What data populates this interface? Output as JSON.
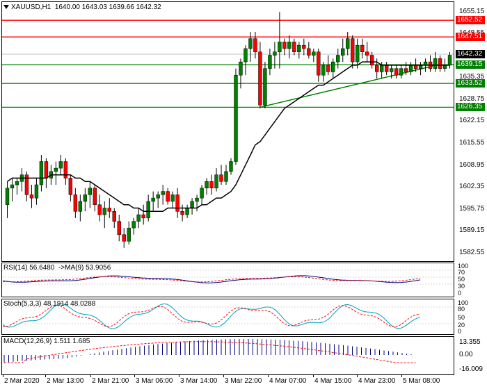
{
  "symbol_header": {
    "symbol": "XAUUSD,H1",
    "ohlc": "1640.00 1643.03 1639.66 1642.32"
  },
  "price_axis": [
    "1655.15",
    "1648.55",
    "1641.95",
    "1635.35",
    "1628.75",
    "1622.15",
    "1615.55",
    "1608.95",
    "1602.35",
    "1595.75",
    "1589.15",
    "1582.55"
  ],
  "level_tags": [
    {
      "value": "1652.52",
      "color": "red"
    },
    {
      "value": "1647.51",
      "color": "red"
    },
    {
      "value": "1642.32",
      "color": "black"
    },
    {
      "value": "1639.15",
      "color": "green"
    },
    {
      "value": "1633.52",
      "color": "green"
    },
    {
      "value": "1626.35",
      "color": "green"
    }
  ],
  "rsi_panel": {
    "title": "RSI(14) 56.6480",
    "ma": "->MA(9) 53.9056",
    "levels": [
      "100",
      "70",
      "50",
      "30",
      "0"
    ]
  },
  "stoch_panel": {
    "title": "Stoch(5,3,3) 48.1914 48.0288",
    "levels": [
      "100",
      "80",
      "50",
      "20",
      "0"
    ]
  },
  "macd_panel": {
    "title": "MACD(12,26,9) 1.511 1.685",
    "levels": [
      "13.355",
      "0.00",
      "-16.009"
    ]
  },
  "time_axis": [
    "2 Mar 2020",
    "2 Mar 13:00",
    "2 Mar 21:00",
    "3 Mar 06:00",
    "3 Mar 14:00",
    "3 Mar 22:00",
    "4 Mar 07:00",
    "4 Mar 15:00",
    "4 Mar 23:00",
    "5 Mar 08:00"
  ],
  "chart_data": {
    "type": "candlestick",
    "candles": [
      [
        1597,
        1604,
        1593,
        1602
      ],
      [
        1602,
        1605,
        1598,
        1603
      ],
      [
        1603,
        1605,
        1600,
        1604
      ],
      [
        1604,
        1608,
        1601,
        1606
      ],
      [
        1606,
        1607,
        1598,
        1600
      ],
      [
        1600,
        1603,
        1596,
        1599
      ],
      [
        1599,
        1605,
        1597,
        1603
      ],
      [
        1603,
        1612,
        1601,
        1610
      ],
      [
        1610,
        1611,
        1602,
        1605
      ],
      [
        1605,
        1609,
        1603,
        1607
      ],
      [
        1607,
        1610,
        1603,
        1608
      ],
      [
        1608,
        1612,
        1606,
        1610
      ],
      [
        1610,
        1611,
        1603,
        1605
      ],
      [
        1605,
        1606,
        1598,
        1600
      ],
      [
        1600,
        1602,
        1593,
        1595
      ],
      [
        1595,
        1600,
        1592,
        1598
      ],
      [
        1598,
        1602,
        1595,
        1600
      ],
      [
        1600,
        1604,
        1596,
        1602
      ],
      [
        1602,
        1603,
        1595,
        1597
      ],
      [
        1597,
        1600,
        1592,
        1594
      ],
      [
        1594,
        1598,
        1590,
        1596
      ],
      [
        1596,
        1599,
        1593,
        1595
      ],
      [
        1595,
        1596,
        1590,
        1592
      ],
      [
        1592,
        1594,
        1586,
        1588
      ],
      [
        1588,
        1590,
        1584,
        1586
      ],
      [
        1586,
        1592,
        1585,
        1590
      ],
      [
        1590,
        1593,
        1588,
        1592
      ],
      [
        1592,
        1596,
        1590,
        1594
      ],
      [
        1594,
        1597,
        1591,
        1593
      ],
      [
        1593,
        1600,
        1592,
        1598
      ],
      [
        1598,
        1601,
        1595,
        1599
      ],
      [
        1599,
        1601,
        1596,
        1600
      ],
      [
        1600,
        1603,
        1597,
        1601
      ],
      [
        1601,
        1602,
        1597,
        1598
      ],
      [
        1598,
        1601,
        1596,
        1600
      ],
      [
        1600,
        1602,
        1593,
        1595
      ],
      [
        1595,
        1597,
        1592,
        1594
      ],
      [
        1594,
        1597,
        1593,
        1596
      ],
      [
        1596,
        1599,
        1594,
        1598
      ],
      [
        1598,
        1600,
        1595,
        1599
      ],
      [
        1599,
        1603,
        1597,
        1602
      ],
      [
        1602,
        1605,
        1600,
        1604
      ],
      [
        1604,
        1606,
        1600,
        1602
      ],
      [
        1602,
        1608,
        1601,
        1606
      ],
      [
        1606,
        1609,
        1603,
        1604
      ],
      [
        1604,
        1609,
        1603,
        1607
      ],
      [
        1607,
        1611,
        1606,
        1610
      ],
      [
        1610,
        1638,
        1609,
        1636
      ],
      [
        1636,
        1641,
        1632,
        1640
      ],
      [
        1640,
        1645,
        1636,
        1644
      ],
      [
        1644,
        1649,
        1640,
        1647
      ],
      [
        1647,
        1649,
        1641,
        1643
      ],
      [
        1643,
        1646,
        1626,
        1627
      ],
      [
        1627,
        1640,
        1626,
        1638
      ],
      [
        1638,
        1644,
        1636,
        1642
      ],
      [
        1642,
        1646,
        1638,
        1643
      ],
      [
        1643,
        1655,
        1638,
        1646
      ],
      [
        1646,
        1647,
        1642,
        1644
      ],
      [
        1644,
        1648,
        1641,
        1646
      ],
      [
        1646,
        1647,
        1642,
        1643
      ],
      [
        1643,
        1646,
        1641,
        1645
      ],
      [
        1645,
        1647,
        1642,
        1644
      ],
      [
        1644,
        1646,
        1641,
        1642
      ],
      [
        1642,
        1644,
        1640,
        1643
      ],
      [
        1643,
        1644,
        1634,
        1636
      ],
      [
        1636,
        1640,
        1634,
        1639
      ],
      [
        1639,
        1642,
        1636,
        1637
      ],
      [
        1637,
        1641,
        1635,
        1640
      ],
      [
        1640,
        1644,
        1638,
        1642
      ],
      [
        1642,
        1647,
        1640,
        1644
      ],
      [
        1644,
        1649,
        1642,
        1647
      ],
      [
        1647,
        1648,
        1638,
        1640
      ],
      [
        1640,
        1647,
        1638,
        1645
      ],
      [
        1645,
        1647,
        1641,
        1643
      ],
      [
        1643,
        1646,
        1640,
        1642
      ],
      [
        1642,
        1643,
        1638,
        1639
      ],
      [
        1639,
        1641,
        1635,
        1637
      ],
      [
        1637,
        1640,
        1635,
        1639
      ],
      [
        1639,
        1640,
        1636,
        1637
      ],
      [
        1637,
        1639,
        1635,
        1638
      ],
      [
        1638,
        1639,
        1635,
        1636
      ],
      [
        1636,
        1639,
        1635,
        1638
      ],
      [
        1638,
        1640,
        1636,
        1637
      ],
      [
        1637,
        1640,
        1636,
        1639
      ],
      [
        1639,
        1641,
        1637,
        1638
      ],
      [
        1638,
        1640,
        1636,
        1639
      ],
      [
        1639,
        1641,
        1637,
        1640
      ],
      [
        1640,
        1642,
        1637,
        1638
      ],
      [
        1638,
        1643,
        1637,
        1641
      ],
      [
        1641,
        1642,
        1637,
        1638
      ],
      [
        1638,
        1641,
        1637,
        1639
      ],
      [
        1639,
        1643,
        1638,
        1642
      ]
    ],
    "ma_values": [
      1604,
      1605,
      1605,
      1605,
      1605,
      1605,
      1605,
      1605,
      1605,
      1606,
      1606,
      1606,
      1606,
      1606,
      1605,
      1605,
      1604,
      1604,
      1603,
      1602,
      1601,
      1600,
      1599,
      1598,
      1597,
      1597,
      1596,
      1596,
      1595,
      1595,
      1595,
      1595,
      1595,
      1596,
      1596,
      1596,
      1596,
      1596,
      1596,
      1596,
      1597,
      1597,
      1598,
      1599,
      1599,
      1600,
      1601,
      1603,
      1606,
      1609,
      1612,
      1615,
      1616,
      1618,
      1620,
      1622,
      1624,
      1626,
      1627,
      1628,
      1629,
      1630,
      1631,
      1632,
      1633,
      1633,
      1634,
      1635,
      1636,
      1637,
      1638,
      1639,
      1639,
      1640,
      1640,
      1640,
      1640,
      1639,
      1639,
      1639,
      1639,
      1639,
      1639,
      1639,
      1639,
      1639,
      1639,
      1639,
      1639,
      1639,
      1639,
      1639
    ],
    "horizontal_levels": [
      {
        "value": 1652.52,
        "color": "#ff0000"
      },
      {
        "value": 1647.51,
        "color": "#ff0000"
      },
      {
        "value": 1639.15,
        "color": "#008000"
      },
      {
        "value": 1633.52,
        "color": "#008000"
      },
      {
        "value": 1626.35,
        "color": "#008000"
      }
    ],
    "trendline": {
      "from": [
        52,
        1626.35
      ],
      "to": [
        92,
        1640.3
      ],
      "color": "#008000"
    },
    "ylim": [
      1580,
      1658
    ],
    "bull_color": "#008000",
    "bear_color": "#ff0000",
    "ma_color": "#000000"
  }
}
